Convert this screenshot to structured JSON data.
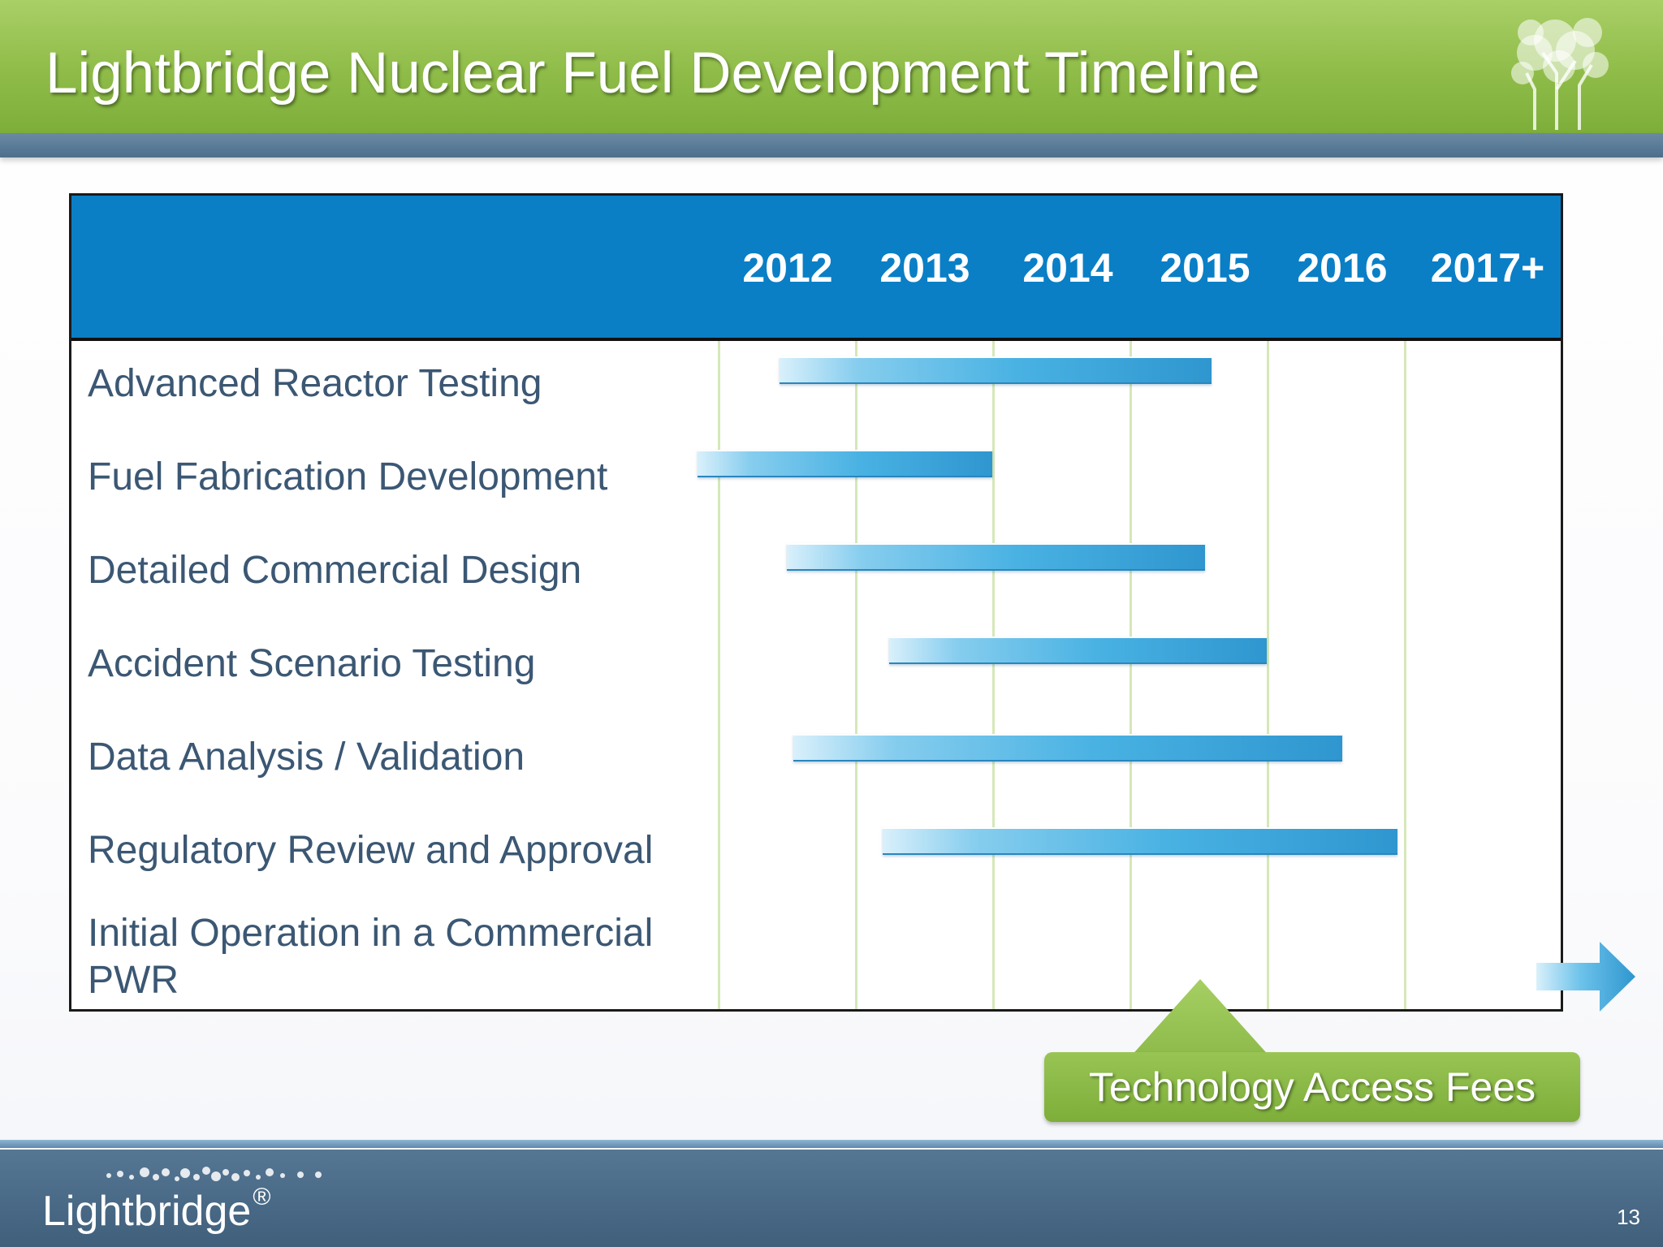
{
  "slide": {
    "title": "Lightbridge Nuclear Fuel Development Timeline",
    "page_number": "13"
  },
  "timeline": {
    "years": [
      "2012",
      "2013",
      "2014",
      "2015",
      "2016",
      "2017+"
    ],
    "tasks": [
      {
        "label": "Advanced Reactor Testing",
        "start": 2012.45,
        "end": 2015.6
      },
      {
        "label": "Fuel Fabrication Development",
        "start": 2011.85,
        "end": 2014.0
      },
      {
        "label": "Detailed Commercial Design",
        "start": 2012.5,
        "end": 2015.55
      },
      {
        "label": "Accident Scenario Testing",
        "start": 2013.25,
        "end": 2016.0
      },
      {
        "label": "Data Analysis / Validation",
        "start": 2012.55,
        "end": 2016.55
      },
      {
        "label": "Regulatory Review and Approval",
        "start": 2013.2,
        "end": 2016.95
      },
      {
        "label_line1": "Initial Operation in a Commercial",
        "label_line2": "PWR",
        "start": 2017.0,
        "arrow": true
      }
    ],
    "bar_color_start": "#d9f0fb",
    "bar_color_end": "#2f96cf",
    "header_color": "#0a7fc6",
    "grid_color": "#d5e8b8"
  },
  "callout": {
    "text": "Technology Access Fees",
    "color": "#8cba49"
  },
  "footer": {
    "brand": "Lightbridge",
    "registered_mark": "®"
  },
  "colors": {
    "title_band": "#8fbc48",
    "footer_band": "#4d6f8c"
  }
}
